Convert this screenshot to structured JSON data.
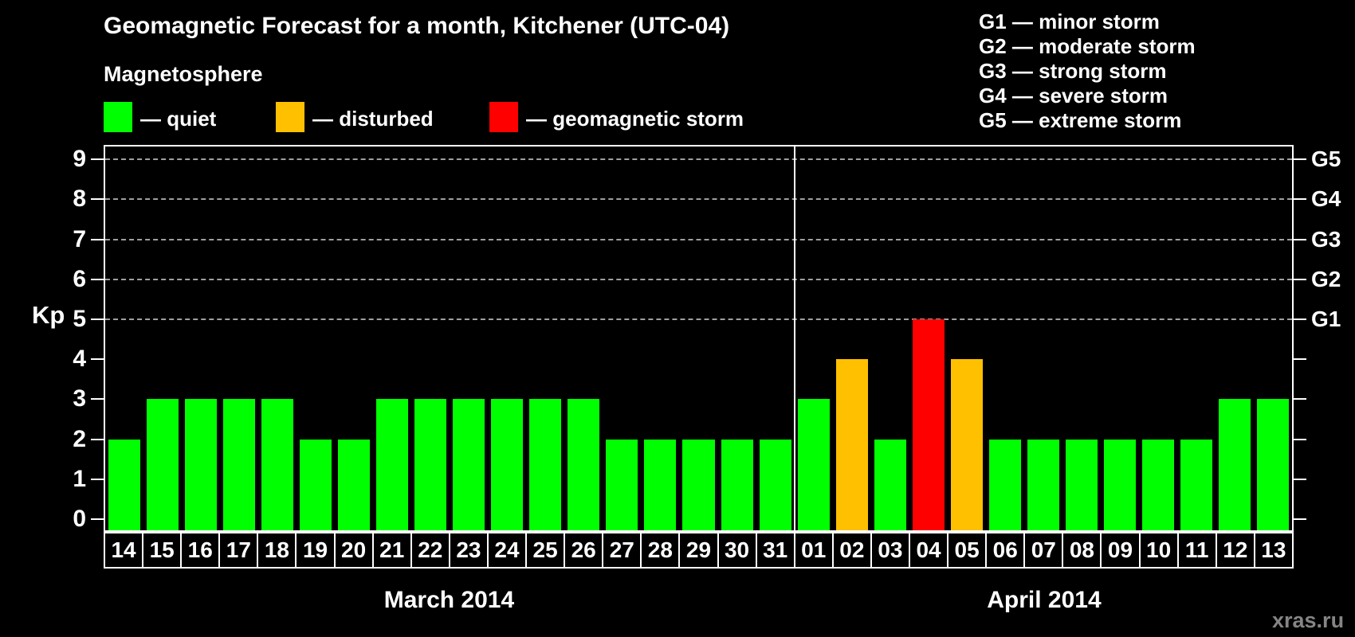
{
  "title": "Geomagnetic Forecast for a month, Kitchener (UTC-04)",
  "subtitle": "Magnetosphere",
  "colors": {
    "quiet": "#00ff00",
    "disturbed": "#ffc000",
    "storm": "#ff0000",
    "frame": "#ffffff",
    "gridline": "#9f9f9f",
    "watermark": "#858585",
    "background": "#000000"
  },
  "legend": {
    "items": [
      {
        "key": "quiet",
        "label": "— quiet",
        "color": "#00ff00"
      },
      {
        "key": "disturbed",
        "label": "— disturbed",
        "color": "#ffc000"
      },
      {
        "key": "storm",
        "label": "— geomagnetic storm",
        "color": "#ff0000"
      }
    ]
  },
  "g_legend": {
    "lines": [
      {
        "label": "G1 — minor storm"
      },
      {
        "label": "G2 — moderate storm"
      },
      {
        "label": "G3 — strong storm"
      },
      {
        "label": "G4 — severe storm"
      },
      {
        "label": "G5 — extreme storm"
      }
    ]
  },
  "watermark": "xras.ru",
  "chart_data": {
    "type": "bar",
    "title": "Geomagnetic Forecast for a month, Kitchener (UTC-04)",
    "ylabel": "Kp",
    "ylim": [
      0,
      9
    ],
    "yticks": [
      0,
      1,
      2,
      3,
      4,
      5,
      6,
      7,
      8,
      9
    ],
    "gridlines": [
      5,
      6,
      7,
      8,
      9
    ],
    "grid": "dashed horizontal at Kp 5-9 only",
    "legend_position": "top",
    "right_axis": [
      {
        "level": 5,
        "label": "G1"
      },
      {
        "level": 6,
        "label": "G2"
      },
      {
        "level": 7,
        "label": "G3"
      },
      {
        "level": 8,
        "label": "G4"
      },
      {
        "level": 9,
        "label": "G5"
      }
    ],
    "months": [
      {
        "label": "March 2014",
        "day_count": 18
      },
      {
        "label": "April 2014",
        "day_count": 13
      }
    ],
    "month_divider_index": 18,
    "days": [
      {
        "month": "March 2014",
        "day": "14",
        "kp": 2,
        "status": "quiet"
      },
      {
        "month": "March 2014",
        "day": "15",
        "kp": 3,
        "status": "quiet"
      },
      {
        "month": "March 2014",
        "day": "16",
        "kp": 3,
        "status": "quiet"
      },
      {
        "month": "March 2014",
        "day": "17",
        "kp": 3,
        "status": "quiet"
      },
      {
        "month": "March 2014",
        "day": "18",
        "kp": 3,
        "status": "quiet"
      },
      {
        "month": "March 2014",
        "day": "19",
        "kp": 2,
        "status": "quiet"
      },
      {
        "month": "March 2014",
        "day": "20",
        "kp": 2,
        "status": "quiet"
      },
      {
        "month": "March 2014",
        "day": "21",
        "kp": 3,
        "status": "quiet"
      },
      {
        "month": "March 2014",
        "day": "22",
        "kp": 3,
        "status": "quiet"
      },
      {
        "month": "March 2014",
        "day": "23",
        "kp": 3,
        "status": "quiet"
      },
      {
        "month": "March 2014",
        "day": "24",
        "kp": 3,
        "status": "quiet"
      },
      {
        "month": "March 2014",
        "day": "25",
        "kp": 3,
        "status": "quiet"
      },
      {
        "month": "March 2014",
        "day": "26",
        "kp": 3,
        "status": "quiet"
      },
      {
        "month": "March 2014",
        "day": "27",
        "kp": 2,
        "status": "quiet"
      },
      {
        "month": "March 2014",
        "day": "28",
        "kp": 2,
        "status": "quiet"
      },
      {
        "month": "March 2014",
        "day": "29",
        "kp": 2,
        "status": "quiet"
      },
      {
        "month": "March 2014",
        "day": "30",
        "kp": 2,
        "status": "quiet"
      },
      {
        "month": "March 2014",
        "day": "31",
        "kp": 2,
        "status": "quiet"
      },
      {
        "month": "April 2014",
        "day": "01",
        "kp": 3,
        "status": "quiet"
      },
      {
        "month": "April 2014",
        "day": "02",
        "kp": 4,
        "status": "disturbed"
      },
      {
        "month": "April 2014",
        "day": "03",
        "kp": 2,
        "status": "quiet"
      },
      {
        "month": "April 2014",
        "day": "04",
        "kp": 5,
        "status": "storm"
      },
      {
        "month": "April 2014",
        "day": "05",
        "kp": 4,
        "status": "disturbed"
      },
      {
        "month": "April 2014",
        "day": "06",
        "kp": 2,
        "status": "quiet"
      },
      {
        "month": "April 2014",
        "day": "07",
        "kp": 2,
        "status": "quiet"
      },
      {
        "month": "April 2014",
        "day": "08",
        "kp": 2,
        "status": "quiet"
      },
      {
        "month": "April 2014",
        "day": "09",
        "kp": 2,
        "status": "quiet"
      },
      {
        "month": "April 2014",
        "day": "10",
        "kp": 2,
        "status": "quiet"
      },
      {
        "month": "April 2014",
        "day": "11",
        "kp": 2,
        "status": "quiet"
      },
      {
        "month": "April 2014",
        "day": "12",
        "kp": 3,
        "status": "quiet"
      },
      {
        "month": "April 2014",
        "day": "13",
        "kp": 3,
        "status": "quiet"
      }
    ]
  }
}
